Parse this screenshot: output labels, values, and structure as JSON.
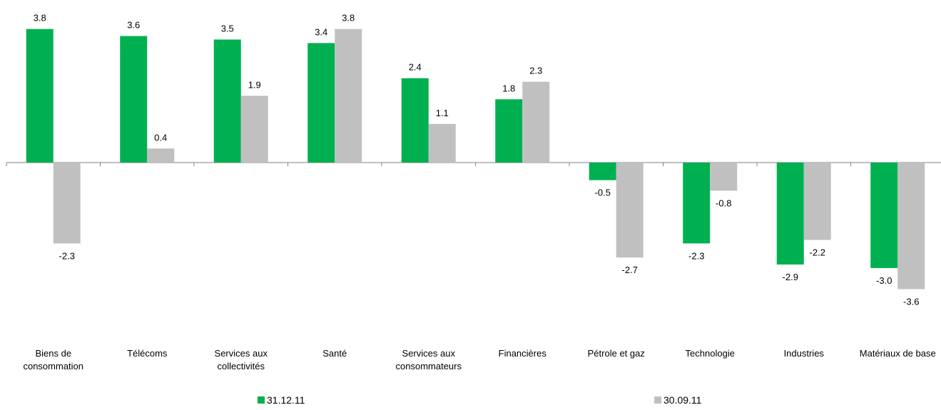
{
  "chart_data": {
    "type": "bar",
    "categories": [
      [
        "Biens de",
        "consommation"
      ],
      [
        "Télécoms"
      ],
      [
        "Services aux",
        "collectivités"
      ],
      [
        "Santé"
      ],
      [
        "Services aux",
        "consommateurs"
      ],
      [
        "Financières"
      ],
      [
        "Pétrole et gaz"
      ],
      [
        "Technologie"
      ],
      [
        "Industries"
      ],
      [
        "Matériaux de base"
      ]
    ],
    "series": [
      {
        "name": "31.12.11",
        "color": "#00b050",
        "values": [
          3.8,
          3.6,
          3.5,
          3.4,
          2.4,
          1.8,
          -0.5,
          -2.3,
          -2.9,
          -3.0
        ],
        "labels": [
          "3.8",
          "3.6",
          "3.5",
          "3.4",
          "2.4",
          "1.8",
          "-0.5",
          "-2.3",
          "-2.9",
          "-3.0"
        ]
      },
      {
        "name": "30.09.11",
        "color": "#c0c0c0",
        "values": [
          -2.3,
          0.4,
          1.9,
          3.8,
          1.1,
          2.3,
          -2.7,
          -0.8,
          -2.2,
          -3.6
        ],
        "labels": [
          "-2.3",
          "0.4",
          "1.9",
          "3.8",
          "1.1",
          "2.3",
          "-2.7",
          "-0.8",
          "-2.2",
          "-3.6"
        ]
      }
    ],
    "title": "",
    "xlabel": "",
    "ylabel": "",
    "legend_position": "bottom",
    "grid": false
  }
}
